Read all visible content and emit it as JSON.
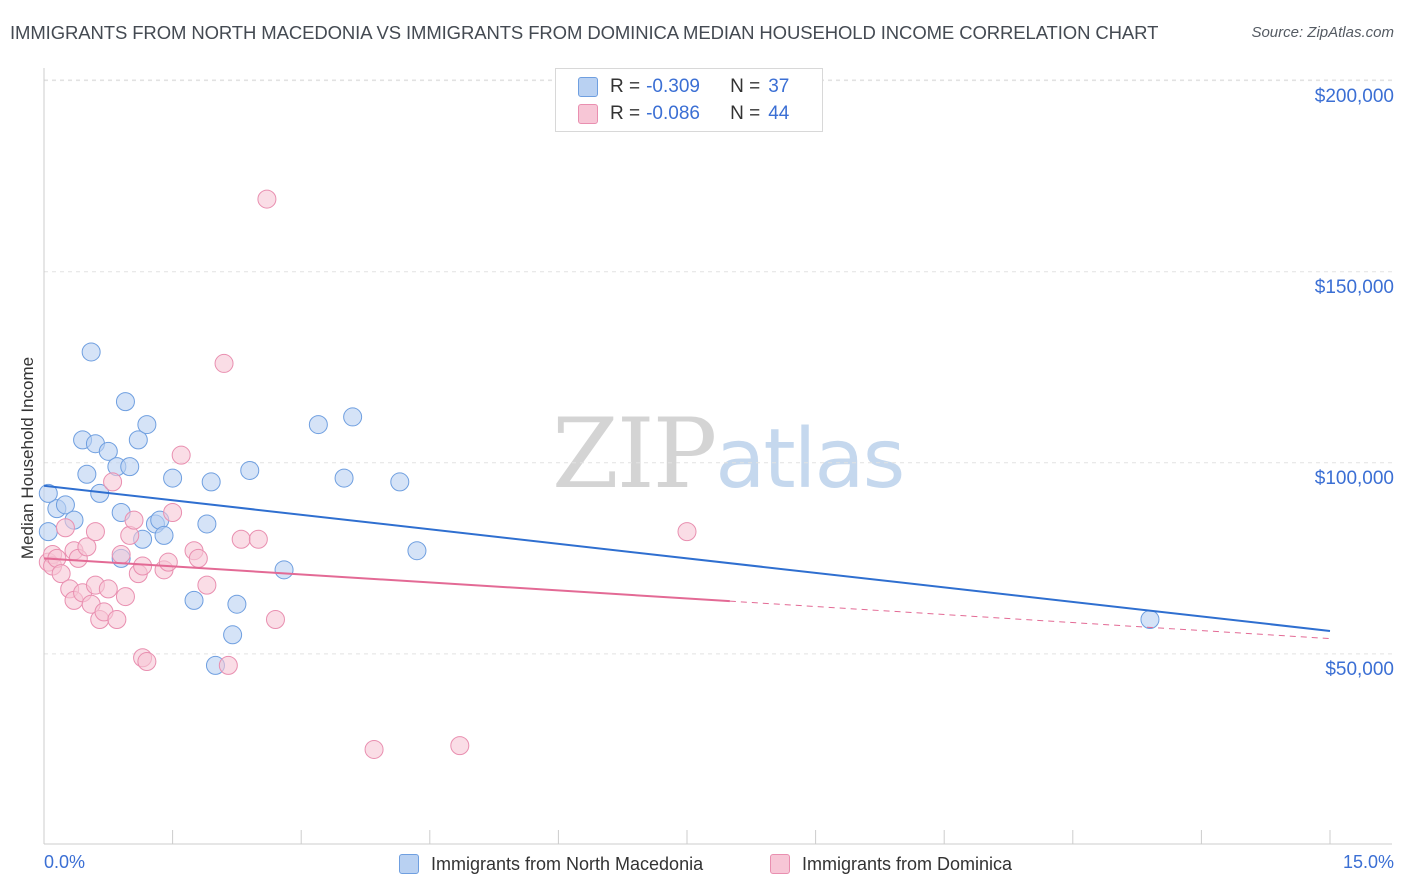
{
  "chart_data": {
    "type": "scatter",
    "title": "IMMIGRANTS FROM NORTH MACEDONIA VS IMMIGRANTS FROM DOMINICA MEDIAN HOUSEHOLD INCOME CORRELATION CHART",
    "source": "Source: ZipAtlas.com",
    "xlabel": "",
    "ylabel": "Median Household Income",
    "xlim": [
      0,
      15
    ],
    "ylim": [
      0,
      205000
    ],
    "x_tick_labels": {
      "min": "0.0%",
      "max": "15.0%"
    },
    "y_ticks": [
      {
        "value": 50000,
        "label": "$50,000"
      },
      {
        "value": 100000,
        "label": "$100,000"
      },
      {
        "value": 150000,
        "label": "$150,000"
      },
      {
        "value": 200000,
        "label": "$200,000"
      }
    ],
    "legend": [
      {
        "r_label": "R =",
        "r_value": "-0.309",
        "n_label": "N =",
        "n_value": "37"
      },
      {
        "r_label": "R =",
        "r_value": "-0.086",
        "n_label": "N =",
        "n_value": "44"
      }
    ],
    "watermark": {
      "part1": "ZIP",
      "part2": "atlas"
    },
    "series": [
      {
        "name": "Immigrants from North Macedonia",
        "color": "#6f9fe0",
        "fill": "#b9d1f2",
        "line_color": "#2f6fd0",
        "trend": {
          "x0": 0.0,
          "y0": 94000,
          "x1": 15.0,
          "y1": 56000,
          "dash_from": null
        },
        "points": [
          [
            0.05,
            82000
          ],
          [
            0.15,
            88000
          ],
          [
            0.25,
            89000
          ],
          [
            0.35,
            85000
          ],
          [
            0.45,
            106000
          ],
          [
            0.5,
            97000
          ],
          [
            0.55,
            129000
          ],
          [
            0.6,
            105000
          ],
          [
            0.65,
            92000
          ],
          [
            0.75,
            103000
          ],
          [
            0.85,
            99000
          ],
          [
            0.9,
            75000
          ],
          [
            0.9,
            87000
          ],
          [
            0.95,
            116000
          ],
          [
            1.1,
            106000
          ],
          [
            1.15,
            80000
          ],
          [
            1.2,
            110000
          ],
          [
            1.3,
            84000
          ],
          [
            1.35,
            85000
          ],
          [
            1.4,
            81000
          ],
          [
            1.5,
            96000
          ],
          [
            1.75,
            64000
          ],
          [
            1.9,
            84000
          ],
          [
            1.95,
            95000
          ],
          [
            2.0,
            47000
          ],
          [
            2.2,
            55000
          ],
          [
            2.25,
            63000
          ],
          [
            2.4,
            98000
          ],
          [
            2.8,
            72000
          ],
          [
            3.2,
            110000
          ],
          [
            3.5,
            96000
          ],
          [
            3.6,
            112000
          ],
          [
            4.15,
            95000
          ],
          [
            4.35,
            77000
          ],
          [
            12.9,
            59000
          ],
          [
            0.05,
            92000
          ],
          [
            1.0,
            99000
          ]
        ]
      },
      {
        "name": "Immigrants from Dominica",
        "color": "#e98fb0",
        "fill": "#f7c6d6",
        "line_color": "#e36a95",
        "trend": {
          "x0": 0.0,
          "y0": 75000,
          "x1": 15.0,
          "y1": 54000,
          "dash_from": 8.0
        },
        "points": [
          [
            0.05,
            74000
          ],
          [
            0.1,
            76000
          ],
          [
            0.1,
            73000
          ],
          [
            0.15,
            75000
          ],
          [
            0.2,
            71000
          ],
          [
            0.25,
            83000
          ],
          [
            0.3,
            67000
          ],
          [
            0.35,
            64000
          ],
          [
            0.35,
            77000
          ],
          [
            0.4,
            75000
          ],
          [
            0.45,
            66000
          ],
          [
            0.5,
            78000
          ],
          [
            0.55,
            63000
          ],
          [
            0.6,
            82000
          ],
          [
            0.6,
            68000
          ],
          [
            0.65,
            59000
          ],
          [
            0.7,
            61000
          ],
          [
            0.75,
            67000
          ],
          [
            0.8,
            95000
          ],
          [
            0.85,
            59000
          ],
          [
            0.9,
            76000
          ],
          [
            0.95,
            65000
          ],
          [
            1.0,
            81000
          ],
          [
            1.05,
            85000
          ],
          [
            1.1,
            71000
          ],
          [
            1.15,
            73000
          ],
          [
            1.15,
            49000
          ],
          [
            1.2,
            48000
          ],
          [
            1.4,
            72000
          ],
          [
            1.45,
            74000
          ],
          [
            1.5,
            87000
          ],
          [
            1.6,
            102000
          ],
          [
            1.75,
            77000
          ],
          [
            1.8,
            75000
          ],
          [
            1.9,
            68000
          ],
          [
            2.1,
            126000
          ],
          [
            2.15,
            47000
          ],
          [
            2.3,
            80000
          ],
          [
            2.5,
            80000
          ],
          [
            2.6,
            169000
          ],
          [
            2.7,
            59000
          ],
          [
            3.85,
            25000
          ],
          [
            4.85,
            26000
          ],
          [
            7.5,
            82000
          ]
        ]
      }
    ]
  }
}
